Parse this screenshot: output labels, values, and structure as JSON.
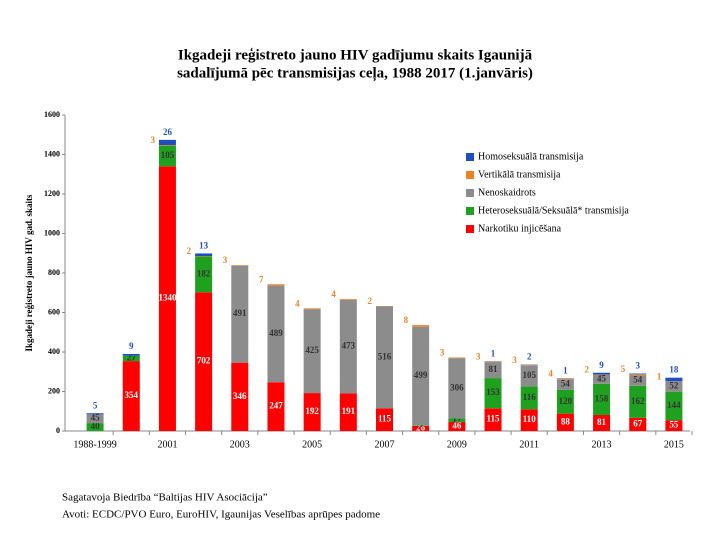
{
  "chart_data": {
    "type": "stacked_bar",
    "title": "Ikgadeji reģistreto jauno HIV gadījumu skaits Igaunijā",
    "subtitle": "sadalījumā pēc transmisijas ceļa, 1988 2017 (1.janvāris)",
    "y_label": "Ikgadeji reģistreto jauno HIV gad. skaits",
    "categories": [
      "1988-1999",
      null,
      "2001",
      null,
      "2003",
      null,
      "2005",
      null,
      "2007",
      null,
      "2009",
      null,
      "2011",
      null,
      "2013",
      null,
      "2015"
    ],
    "series": [
      {
        "name": "Narkotiku injicēšana",
        "color": "#ff0000",
        "values": [
          null,
          354,
          1340,
          702,
          346,
          247,
          192,
          191,
          115,
          26,
          46,
          115,
          110,
          88,
          81,
          67,
          55
        ]
      },
      {
        "name": "Heteroseksuālā/Seksuālā* transmisija",
        "color": "#1fa01f",
        "values": [
          40,
          27,
          105,
          182,
          null,
          null,
          null,
          null,
          null,
          3,
          17,
          153,
          116,
          120,
          158,
          162,
          144
        ]
      },
      {
        "name": "Nenoskaidrots",
        "color": "#8c8c8c",
        "values": [
          45,
          null,
          null,
          null,
          491,
          489,
          425,
          473,
          516,
          499,
          306,
          81,
          105,
          54,
          45,
          54,
          52
        ]
      },
      {
        "name": "Vertikālā transmisija",
        "color": "#e9822b",
        "values": [
          null,
          null,
          3,
          2,
          3,
          7,
          4,
          4,
          2,
          8,
          3,
          3,
          3,
          4,
          2,
          5,
          1
        ]
      },
      {
        "name": "Homoseksuālā transmisija",
        "color": "#1f4fbf",
        "values": [
          5,
          9,
          26,
          13,
          null,
          null,
          null,
          null,
          null,
          null,
          null,
          1,
          2,
          1,
          9,
          3,
          18
        ]
      }
    ],
    "ylim": [
      0,
      1600
    ],
    "yticks": [
      0,
      200,
      400,
      600,
      800,
      1000,
      1200,
      1400,
      1600
    ],
    "footnote": [
      "Sagatavoja Biedrība “Baltijas HIV Asociācija”",
      "Avoti: ECDC/PVO Euro, EuroHIV, Igaunijas Veselības aprūpes padome"
    ]
  }
}
